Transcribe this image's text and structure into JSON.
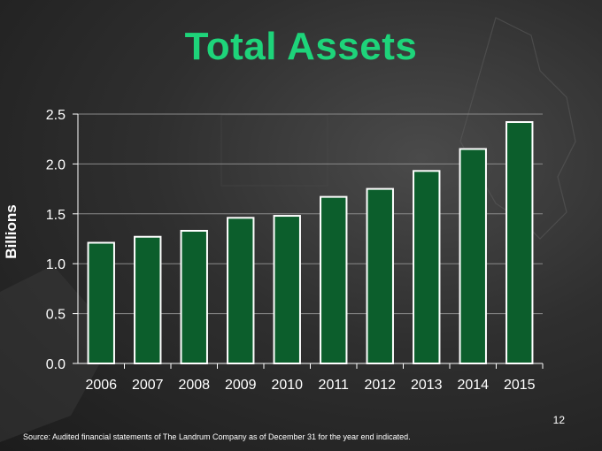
{
  "slide": {
    "title": "Total Assets",
    "source": "Source: Audited financial statements of The Landrum Company as of December 31 for the year end indicated.",
    "page_number": "12"
  },
  "colors": {
    "title": "#1ed47a",
    "bar_fill": "#0c5e2c",
    "bar_stroke": "#ffffff",
    "axis": "#ffffff",
    "grid": "#8a8a8a"
  },
  "chart_data": {
    "type": "bar",
    "categories": [
      "2006",
      "2007",
      "2008",
      "2009",
      "2010",
      "2011",
      "2012",
      "2013",
      "2014",
      "2015"
    ],
    "values": [
      1.21,
      1.27,
      1.33,
      1.46,
      1.48,
      1.67,
      1.75,
      1.93,
      2.15,
      2.42
    ],
    "ylabel": "Billions",
    "ylim": [
      0,
      2.5
    ],
    "yticks": [
      "0.0",
      "0.5",
      "1.0",
      "1.5",
      "2.0",
      "2.5"
    ],
    "grid": true,
    "legend": "none"
  }
}
